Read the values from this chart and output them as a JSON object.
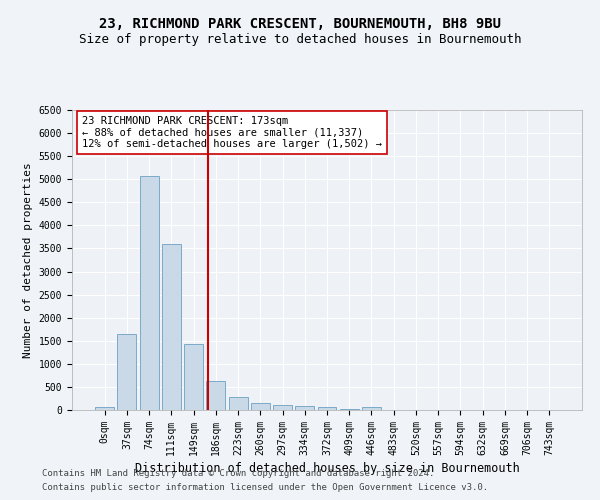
{
  "title1": "23, RICHMOND PARK CRESCENT, BOURNEMOUTH, BH8 9BU",
  "title2": "Size of property relative to detached houses in Bournemouth",
  "xlabel": "Distribution of detached houses by size in Bournemouth",
  "ylabel": "Number of detached properties",
  "footer1": "Contains HM Land Registry data © Crown copyright and database right 2024.",
  "footer2": "Contains public sector information licensed under the Open Government Licence v3.0.",
  "bar_labels": [
    "0sqm",
    "37sqm",
    "74sqm",
    "111sqm",
    "149sqm",
    "186sqm",
    "223sqm",
    "260sqm",
    "297sqm",
    "334sqm",
    "372sqm",
    "409sqm",
    "446sqm",
    "483sqm",
    "520sqm",
    "557sqm",
    "594sqm",
    "632sqm",
    "669sqm",
    "706sqm",
    "743sqm"
  ],
  "bar_values": [
    75,
    1650,
    5060,
    3600,
    1420,
    620,
    290,
    155,
    110,
    80,
    55,
    30,
    60,
    0,
    0,
    0,
    0,
    0,
    0,
    0,
    0
  ],
  "bar_color": "#c9d9e8",
  "bar_edge_color": "#7aaac8",
  "vline_color": "#cc0000",
  "annotation_box_text": "23 RICHMOND PARK CRESCENT: 173sqm\n← 88% of detached houses are smaller (11,337)\n12% of semi-detached houses are larger (1,502) →",
  "ylim": [
    0,
    6500
  ],
  "yticks": [
    0,
    500,
    1000,
    1500,
    2000,
    2500,
    3000,
    3500,
    4000,
    4500,
    5000,
    5500,
    6000,
    6500
  ],
  "background_color": "#eef2f7",
  "grid_color": "#ffffff",
  "title1_fontsize": 10,
  "title2_fontsize": 9,
  "xlabel_fontsize": 8.5,
  "ylabel_fontsize": 8,
  "tick_fontsize": 7,
  "footer_fontsize": 6.5,
  "annotation_fontsize": 7.5
}
